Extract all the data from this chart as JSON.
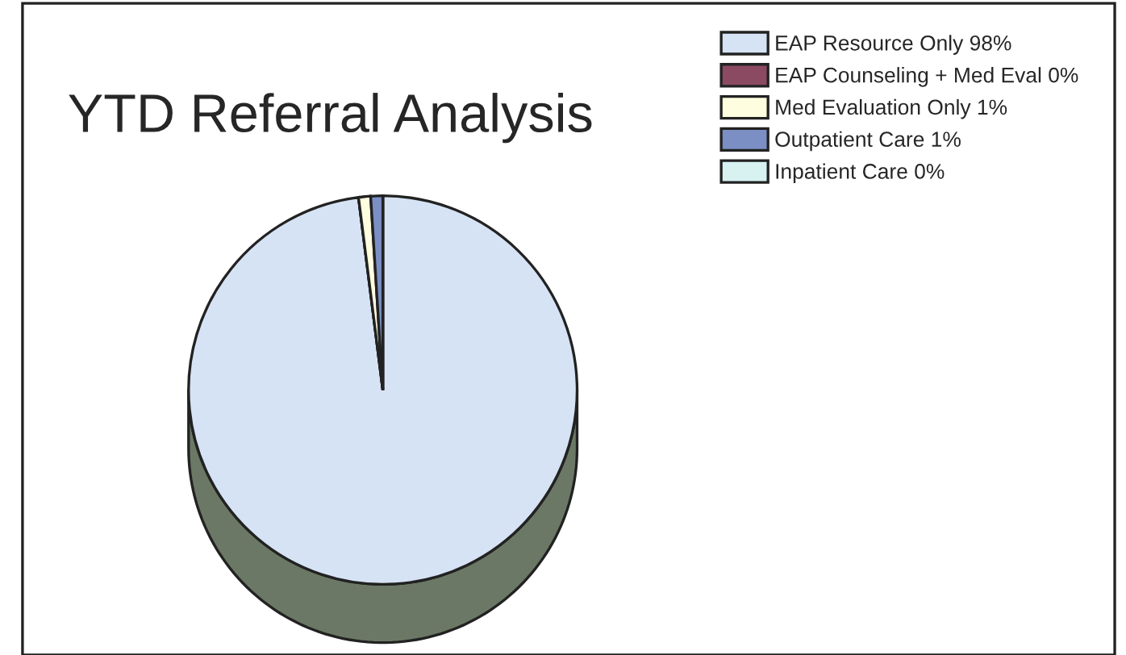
{
  "chart_data": {
    "type": "pie",
    "title": "YTD Referral Analysis",
    "categories": [
      "EAP Resource Only 98%",
      "EAP Counseling + Med Eval 0%",
      "Med Evaluation Only 1%",
      "Outpatient Care 1%",
      "Inpatient Care 0%"
    ],
    "values": [
      98,
      0,
      1,
      1,
      0
    ],
    "colors": [
      "#d6e3f5",
      "#8b4a62",
      "#fffde0",
      "#7b8fc4",
      "#d8f2f2"
    ],
    "legend": "top right"
  }
}
